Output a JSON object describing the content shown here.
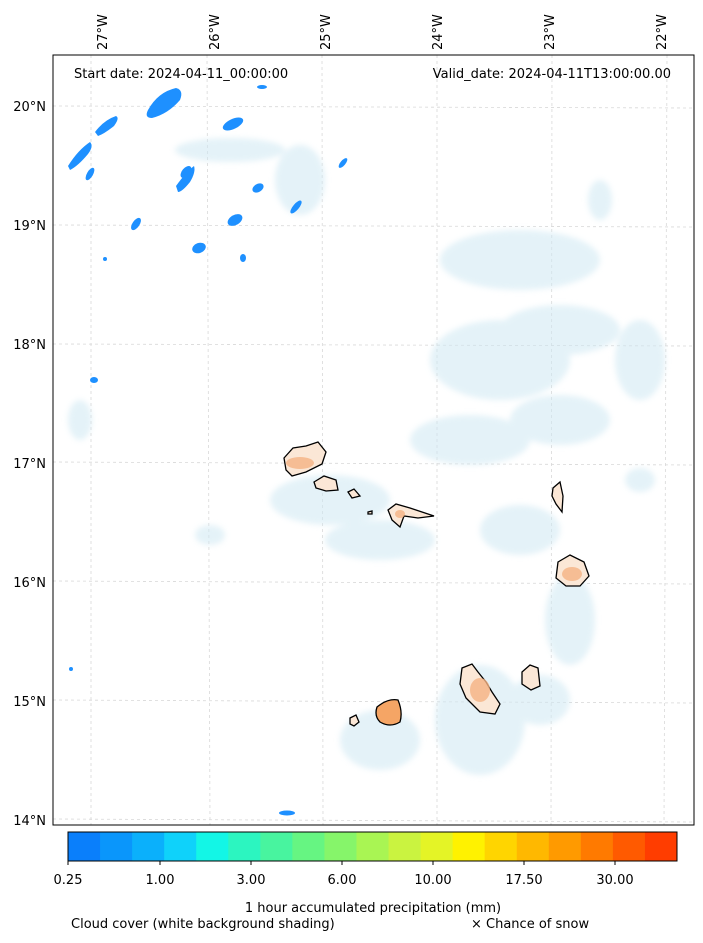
{
  "header": {
    "start_date": "Start date: 2024-04-11_00:00:00",
    "valid_date": "Valid_date: 2024-04-11T13:00:00.00"
  },
  "axes": {
    "lon_labels": [
      "27°W",
      "26°W",
      "25°W",
      "24°W",
      "23°W",
      "22°W"
    ],
    "lat_labels": [
      "20°N",
      "19°N",
      "18°N",
      "17°N",
      "16°N",
      "15°N",
      "14°N"
    ]
  },
  "colorbar": {
    "colors": [
      "#0a7ffb",
      "#0a96fb",
      "#0bb0fb",
      "#0fd2fa",
      "#13f6e6",
      "#2cf5c0",
      "#48f49f",
      "#66f582",
      "#86f56a",
      "#a9f553",
      "#caf340",
      "#e4f426",
      "#fff200",
      "#ffd500",
      "#ffb800",
      "#ff9a00",
      "#ff7a00",
      "#ff5a00",
      "#ff3d00"
    ],
    "tick_labels": [
      "0.25",
      "1.00",
      "3.00",
      "6.00",
      "10.00",
      "17.50",
      "30.00"
    ],
    "label": "1 hour accumulated precipitation (mm)"
  },
  "footer": {
    "cloud_note": "Cloud cover (white background shading)",
    "snow_note": "× Chance of snow"
  },
  "colors": {
    "precip_blue": "#1e90ff",
    "cloud_tint": "#cfe8f3",
    "land_fill": "#f3c9a6"
  }
}
